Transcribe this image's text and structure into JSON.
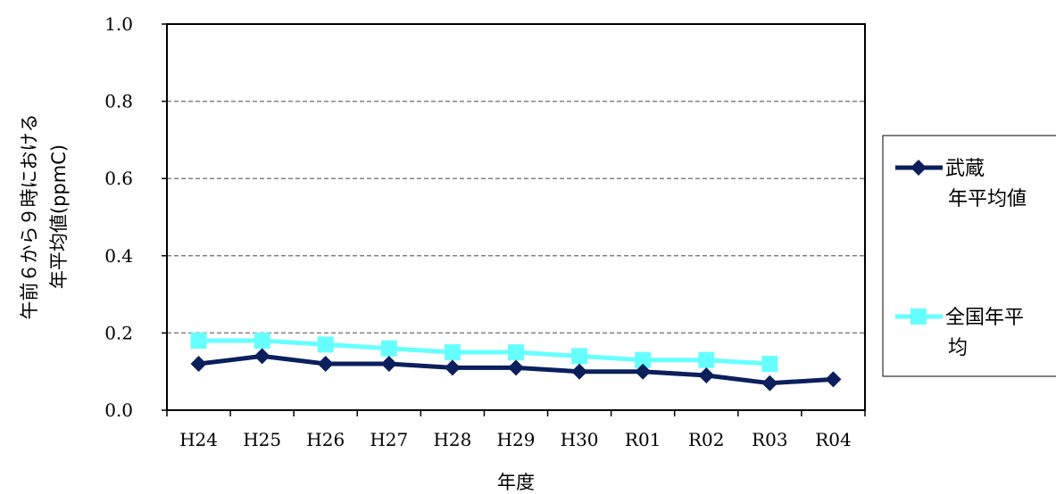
{
  "chart_data": {
    "type": "line",
    "categories": [
      "H24",
      "H25",
      "H26",
      "H27",
      "H28",
      "H29",
      "H30",
      "R01",
      "R02",
      "R03",
      "R04"
    ],
    "series": [
      {
        "name": "武蔵年平均値",
        "legend_lines": [
          "武蔵",
          "年平均値"
        ],
        "color": "#0a1f5c",
        "marker": "diamond",
        "values": [
          0.12,
          0.14,
          0.12,
          0.12,
          0.11,
          0.11,
          0.1,
          0.1,
          0.09,
          0.07,
          0.08
        ]
      },
      {
        "name": "全国年平均",
        "legend_lines": [
          "全国年平",
          "均"
        ],
        "color": "#66ffff",
        "marker": "square",
        "values": [
          0.18,
          0.18,
          0.17,
          0.16,
          0.15,
          0.15,
          0.14,
          0.13,
          0.13,
          0.12,
          null
        ]
      }
    ],
    "xlabel": "年度",
    "ylabel_lines": [
      "午前６から９時における",
      "年平均値(ppmC)"
    ],
    "ylim": [
      0.0,
      1.0
    ],
    "yticks": [
      0.0,
      0.2,
      0.4,
      0.6,
      0.8,
      1.0
    ],
    "ytick_labels": [
      "0.0",
      "0.2",
      "0.4",
      "0.6",
      "0.8",
      "1.0"
    ],
    "grid": "horizontal-dashed",
    "legend_position": "right"
  }
}
